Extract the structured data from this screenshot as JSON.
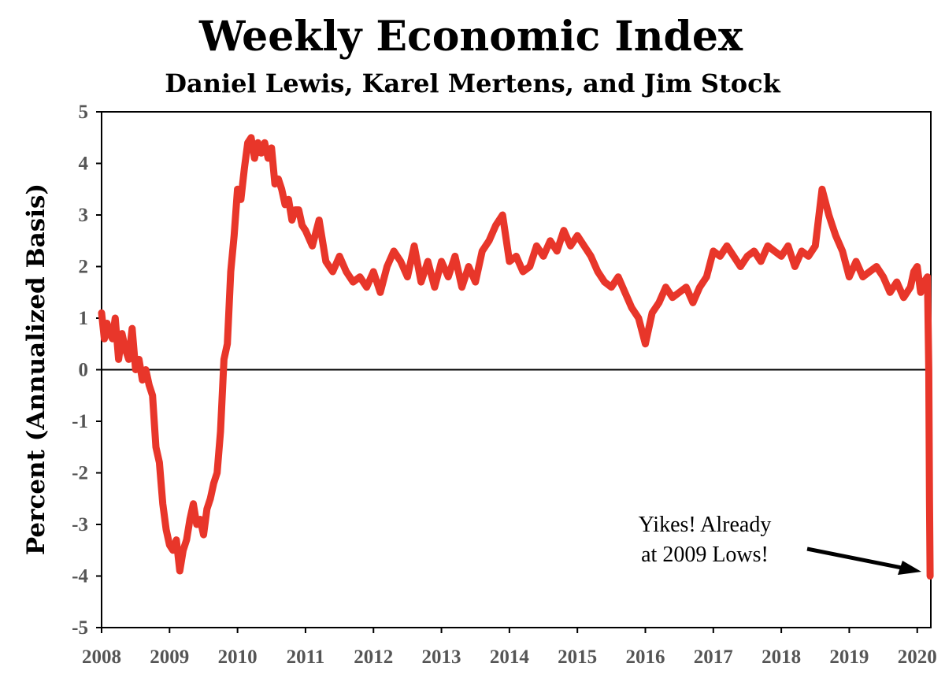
{
  "chart_data": {
    "type": "line",
    "title": "Weekly Economic Index",
    "subtitle": "Daniel Lewis, Karel Mertens, and Jim Stock",
    "xlabel": "",
    "ylabel": "Percent (Annualized Basis)",
    "xlim": [
      2008,
      2020.2
    ],
    "ylim": [
      -5,
      5
    ],
    "x_ticks": [
      "2008",
      "2009",
      "2010",
      "2011",
      "2012",
      "2013",
      "2014",
      "2015",
      "2016",
      "2017",
      "2018",
      "2019",
      "2020"
    ],
    "y_ticks": [
      "5",
      "4",
      "3",
      "2",
      "1",
      "0",
      "-1",
      "-2",
      "-3",
      "-4",
      "-5"
    ],
    "grid": false,
    "zero_line": true,
    "colors": {
      "series": "#e8362a",
      "axis": "#000000",
      "ticks": "#555555"
    },
    "annotation": {
      "line1": "Yikes! Already",
      "line2": "at 2009 Lows!"
    },
    "series": [
      {
        "x": [
          2008.0,
          2008.04,
          2008.08,
          2008.12,
          2008.16,
          2008.2,
          2008.25,
          2008.3,
          2008.35,
          2008.4,
          2008.45,
          2008.5,
          2008.55,
          2008.6,
          2008.65,
          2008.7,
          2008.75,
          2008.8,
          2008.85,
          2008.9,
          2008.95,
          2009.0,
          2009.05,
          2009.1,
          2009.15,
          2009.2,
          2009.25,
          2009.3,
          2009.35,
          2009.4,
          2009.45,
          2009.5,
          2009.55,
          2009.6,
          2009.65,
          2009.7,
          2009.75,
          2009.8,
          2009.85,
          2009.9,
          2009.95,
          2010.0,
          2010.05,
          2010.1,
          2010.15,
          2010.2,
          2010.25,
          2010.3,
          2010.35,
          2010.4,
          2010.45,
          2010.5,
          2010.55,
          2010.6,
          2010.65,
          2010.7,
          2010.75,
          2010.8,
          2010.85,
          2010.9,
          2010.95,
          2011.0,
          2011.1,
          2011.2,
          2011.3,
          2011.4,
          2011.5,
          2011.6,
          2011.7,
          2011.8,
          2011.9,
          2012.0,
          2012.1,
          2012.2,
          2012.3,
          2012.4,
          2012.5,
          2012.6,
          2012.7,
          2012.8,
          2012.9,
          2013.0,
          2013.1,
          2013.2,
          2013.3,
          2013.4,
          2013.5,
          2013.6,
          2013.7,
          2013.8,
          2013.9,
          2014.0,
          2014.1,
          2014.2,
          2014.3,
          2014.4,
          2014.5,
          2014.6,
          2014.7,
          2014.8,
          2014.9,
          2015.0,
          2015.1,
          2015.2,
          2015.3,
          2015.4,
          2015.5,
          2015.6,
          2015.7,
          2015.8,
          2015.9,
          2016.0,
          2016.1,
          2016.2,
          2016.3,
          2016.4,
          2016.5,
          2016.6,
          2016.7,
          2016.8,
          2016.9,
          2017.0,
          2017.1,
          2017.2,
          2017.3,
          2017.4,
          2017.5,
          2017.6,
          2017.7,
          2017.8,
          2017.9,
          2018.0,
          2018.1,
          2018.2,
          2018.3,
          2018.4,
          2018.5,
          2018.6,
          2018.7,
          2018.75,
          2018.8,
          2018.9,
          2019.0,
          2019.1,
          2019.2,
          2019.3,
          2019.4,
          2019.5,
          2019.6,
          2019.7,
          2019.8,
          2019.9,
          2019.95,
          2020.0,
          2020.05,
          2020.1,
          2020.15,
          2020.17,
          2020.18,
          2020.19
        ],
        "y": [
          1.1,
          0.6,
          0.9,
          0.7,
          0.6,
          1.0,
          0.2,
          0.7,
          0.4,
          0.2,
          0.8,
          0.0,
          0.2,
          -0.2,
          0.0,
          -0.3,
          -0.5,
          -1.5,
          -1.8,
          -2.6,
          -3.1,
          -3.4,
          -3.5,
          -3.3,
          -3.9,
          -3.5,
          -3.3,
          -2.9,
          -2.6,
          -3.0,
          -2.9,
          -3.2,
          -2.7,
          -2.5,
          -2.2,
          -2.0,
          -1.2,
          0.2,
          0.5,
          1.9,
          2.6,
          3.5,
          3.3,
          3.9,
          4.4,
          4.5,
          4.1,
          4.4,
          4.2,
          4.4,
          4.1,
          4.3,
          3.6,
          3.7,
          3.5,
          3.2,
          3.3,
          2.9,
          3.1,
          3.1,
          2.8,
          2.7,
          2.4,
          2.9,
          2.1,
          1.9,
          2.2,
          1.9,
          1.7,
          1.8,
          1.6,
          1.9,
          1.5,
          2.0,
          2.3,
          2.1,
          1.8,
          2.4,
          1.7,
          2.1,
          1.6,
          2.1,
          1.8,
          2.2,
          1.6,
          2.0,
          1.7,
          2.3,
          2.5,
          2.8,
          3.0,
          2.1,
          2.2,
          1.9,
          2.0,
          2.4,
          2.2,
          2.5,
          2.3,
          2.7,
          2.4,
          2.6,
          2.4,
          2.2,
          1.9,
          1.7,
          1.6,
          1.8,
          1.5,
          1.2,
          1.0,
          0.5,
          1.1,
          1.3,
          1.6,
          1.4,
          1.5,
          1.6,
          1.3,
          1.6,
          1.8,
          2.3,
          2.2,
          2.4,
          2.2,
          2.0,
          2.2,
          2.3,
          2.1,
          2.4,
          2.3,
          2.2,
          2.4,
          2.0,
          2.3,
          2.2,
          2.4,
          3.5,
          3.0,
          2.8,
          2.6,
          2.3,
          1.8,
          2.1,
          1.8,
          1.9,
          2.0,
          1.8,
          1.5,
          1.7,
          1.4,
          1.6,
          1.9,
          2.0,
          1.5,
          1.7,
          1.8,
          0.0,
          -2.5,
          -4.0
        ]
      }
    ]
  }
}
